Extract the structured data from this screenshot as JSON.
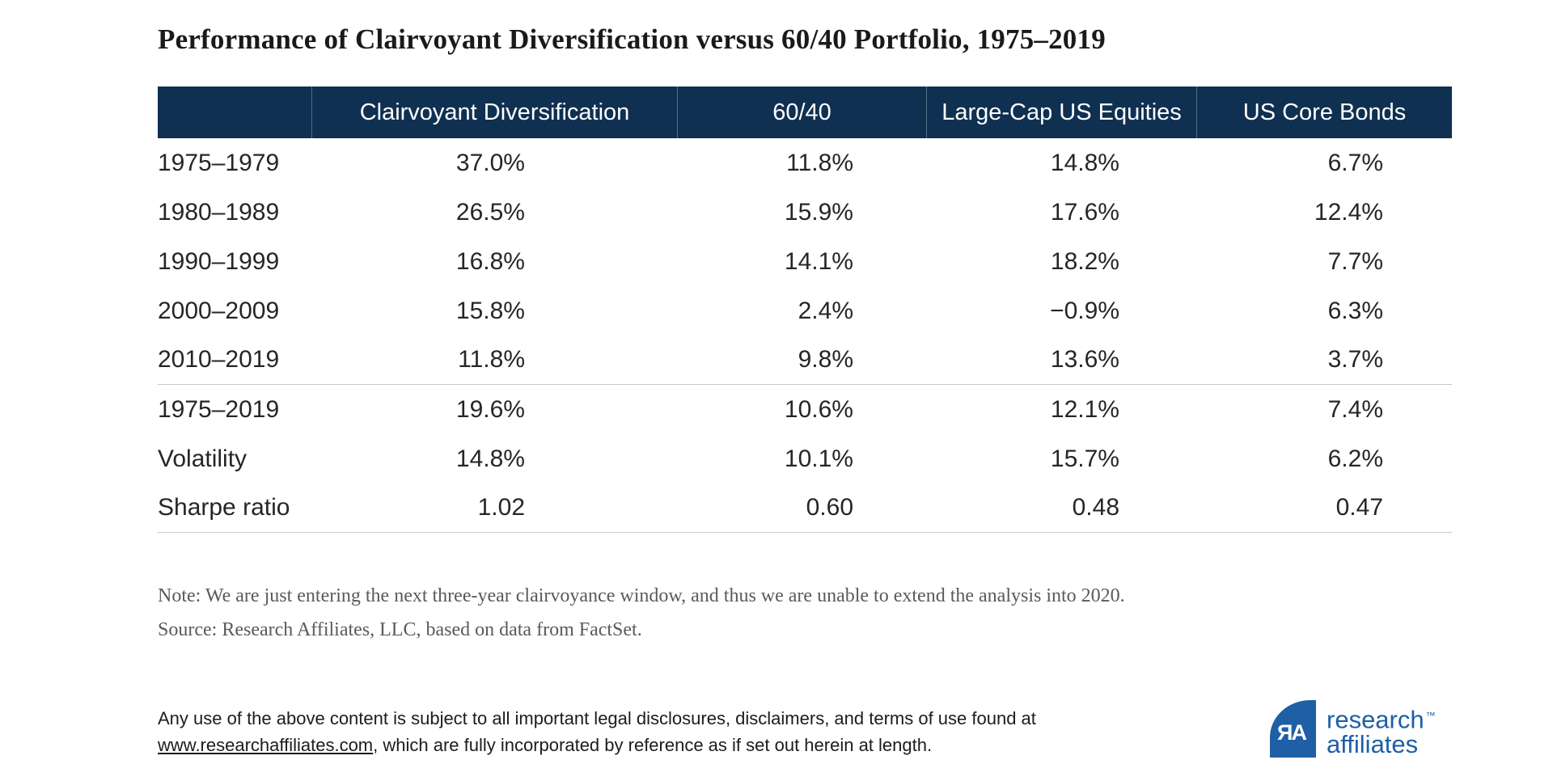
{
  "chart_data": {
    "type": "table",
    "title": "Performance of Clairvoyant Diversification versus 60/40 Portfolio, 1975–2019",
    "columns": [
      "",
      "Clairvoyant Diversification",
      "60/40",
      "Large-Cap US Equities",
      "US Core Bonds"
    ],
    "rows": [
      {
        "label": "1975–1979",
        "values": [
          "37.0%",
          "11.8%",
          "14.8%",
          "6.7%"
        ]
      },
      {
        "label": "1980–1989",
        "values": [
          "26.5%",
          "15.9%",
          "17.6%",
          "12.4%"
        ]
      },
      {
        "label": "1990–1999",
        "values": [
          "16.8%",
          "14.1%",
          "18.2%",
          "7.7%"
        ]
      },
      {
        "label": "2000–2009",
        "values": [
          "15.8%",
          "2.4%",
          "−0.9%",
          "6.3%"
        ]
      },
      {
        "label": "2010–2019",
        "values": [
          "11.8%",
          "9.8%",
          "13.6%",
          "3.7%"
        ]
      },
      {
        "label": "1975–2019",
        "values": [
          "19.6%",
          "10.6%",
          "12.1%",
          "7.4%"
        ]
      },
      {
        "label": "Volatility",
        "values": [
          "14.8%",
          "10.1%",
          "15.7%",
          "6.2%"
        ]
      },
      {
        "label": "Sharpe ratio",
        "values": [
          "1.02",
          "0.60",
          "0.48",
          "0.47"
        ]
      }
    ],
    "layout": {
      "header_bg": "#0F3051",
      "header_text": "#ffffff",
      "separator_after_rows": [
        4,
        7
      ]
    }
  },
  "notes": {
    "note": "Note: We are just entering the next three-year clairvoyance window, and thus we are unable to extend the analysis into 2020.",
    "source": "Source: Research Affiliates, LLC, based on data from FactSet."
  },
  "disclaimer": {
    "line1": "Any use of the above content is subject to all important legal disclosures, disclaimers, and terms of use found at",
    "link": "www.researchaffiliates.com",
    "line2_rest": ", which are fully incorporated by reference as if set out herein at length."
  },
  "logo": {
    "monogram": "ЯA",
    "word1": "research",
    "tm": "™",
    "word2": "affiliates",
    "brand_blue": "#1E5FA5"
  }
}
